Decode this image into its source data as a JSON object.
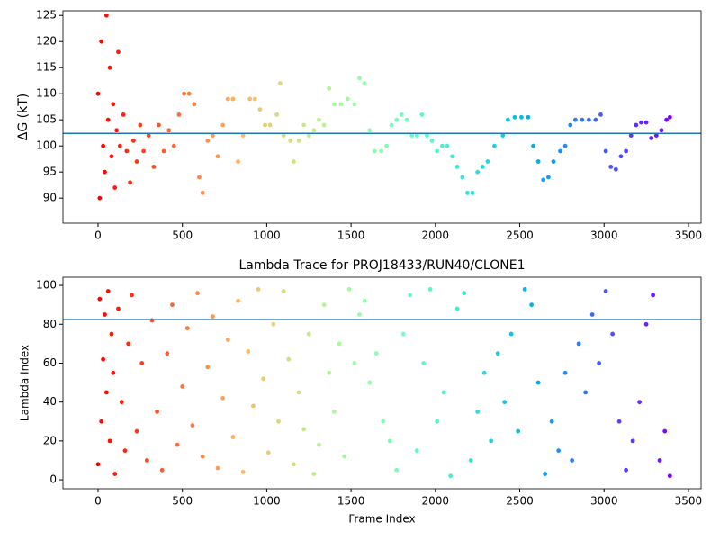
{
  "chart_data": [
    {
      "type": "scatter",
      "y_label": "ΔG (kT)",
      "colormap": "rainbow_r",
      "x": [
        0,
        10,
        20,
        30,
        40,
        50,
        60,
        70,
        80,
        90,
        100,
        110,
        120,
        130,
        150,
        170,
        190,
        210,
        230,
        250,
        270,
        300,
        330,
        360,
        390,
        420,
        450,
        480,
        510,
        540,
        570,
        600,
        620,
        650,
        680,
        710,
        740,
        770,
        800,
        830,
        860,
        900,
        930,
        960,
        990,
        1020,
        1060,
        1080,
        1100,
        1140,
        1160,
        1190,
        1220,
        1250,
        1280,
        1310,
        1340,
        1370,
        1400,
        1440,
        1480,
        1520,
        1550,
        1580,
        1610,
        1640,
        1680,
        1710,
        1740,
        1770,
        1800,
        1830,
        1860,
        1890,
        1920,
        1950,
        1980,
        2010,
        2040,
        2070,
        2100,
        2130,
        2160,
        2190,
        2220,
        2250,
        2280,
        2310,
        2350,
        2400,
        2430,
        2470,
        2510,
        2550,
        2580,
        2610,
        2640,
        2670,
        2700,
        2740,
        2770,
        2800,
        2830,
        2870,
        2910,
        2950,
        2980,
        3010,
        3040,
        3070,
        3100,
        3130,
        3160,
        3190,
        3220,
        3250,
        3280,
        3310,
        3340,
        3370,
        3390
      ],
      "values": [
        110,
        90,
        120,
        100,
        95,
        125,
        105,
        115,
        98,
        108,
        92,
        103,
        118,
        100,
        106,
        99,
        93,
        101,
        97,
        104,
        99,
        102,
        96,
        104,
        99,
        103,
        100,
        106,
        110,
        110,
        108,
        94,
        91,
        101,
        102,
        98,
        104,
        109,
        109,
        97,
        102,
        109,
        109,
        107,
        104,
        104,
        106,
        112,
        102,
        101,
        97,
        101,
        104,
        102,
        103,
        105,
        104,
        111,
        108,
        108,
        109,
        108,
        113,
        112,
        103,
        99,
        99,
        100,
        104,
        105,
        106,
        105,
        102,
        102,
        106,
        102,
        101,
        99,
        100,
        100,
        98,
        96,
        94,
        91,
        91,
        95,
        96,
        97,
        100,
        102,
        105,
        105.5,
        105.5,
        105.5,
        100,
        97,
        93.5,
        94,
        97,
        99,
        100,
        104,
        105,
        105,
        105,
        105,
        106,
        99,
        96,
        95.5,
        98,
        99,
        102,
        104,
        104.5,
        104.5,
        101.5,
        102,
        103,
        105,
        105.5
      ],
      "xlim": [
        -208,
        3575
      ],
      "xticks": [
        0,
        500,
        1000,
        1500,
        2000,
        2500,
        3000,
        3500
      ],
      "ylim": [
        85.2,
        125.9
      ],
      "yticks": [
        90,
        95,
        100,
        105,
        110,
        115,
        120,
        125
      ],
      "hline": 102.4,
      "hline_color": "#1f77b4"
    },
    {
      "type": "scatter",
      "title": "Lambda Trace for PROJ18433/RUN40/CLONE1",
      "x_label": "Frame Index",
      "y_label": "Lambda Index",
      "colormap": "rainbow_r",
      "x": [
        0,
        10,
        20,
        30,
        40,
        50,
        60,
        70,
        80,
        90,
        100,
        120,
        140,
        160,
        180,
        200,
        230,
        260,
        290,
        320,
        350,
        380,
        410,
        440,
        470,
        500,
        530,
        560,
        590,
        620,
        650,
        680,
        710,
        740,
        770,
        800,
        830,
        860,
        890,
        920,
        950,
        980,
        1010,
        1040,
        1070,
        1100,
        1130,
        1160,
        1190,
        1220,
        1250,
        1280,
        1310,
        1340,
        1370,
        1400,
        1430,
        1460,
        1490,
        1520,
        1550,
        1580,
        1610,
        1650,
        1690,
        1730,
        1770,
        1810,
        1850,
        1890,
        1930,
        1970,
        2010,
        2050,
        2090,
        2130,
        2170,
        2210,
        2250,
        2290,
        2330,
        2370,
        2410,
        2450,
        2490,
        2530,
        2570,
        2610,
        2650,
        2690,
        2730,
        2770,
        2810,
        2850,
        2890,
        2930,
        2970,
        3010,
        3050,
        3090,
        3130,
        3170,
        3210,
        3250,
        3290,
        3330,
        3360,
        3390
      ],
      "values": [
        8,
        93,
        30,
        62,
        85,
        45,
        97,
        20,
        75,
        55,
        3,
        88,
        40,
        15,
        70,
        95,
        25,
        60,
        10,
        82,
        35,
        5,
        65,
        90,
        18,
        48,
        78,
        28,
        96,
        12,
        58,
        84,
        6,
        42,
        72,
        22,
        92,
        4,
        66,
        38,
        98,
        52,
        14,
        80,
        30,
        97,
        62,
        8,
        45,
        26,
        75,
        3,
        18,
        90,
        55,
        35,
        70,
        12,
        98,
        60,
        85,
        92,
        50,
        65,
        30,
        20,
        5,
        75,
        95,
        15,
        60,
        98,
        30,
        45,
        2,
        88,
        96,
        10,
        35,
        55,
        20,
        65,
        40,
        75,
        25,
        98,
        90,
        50,
        3,
        30,
        15,
        55,
        10,
        70,
        45,
        85,
        60,
        97,
        75,
        30,
        5,
        20,
        40,
        80,
        95,
        10,
        25,
        2
      ],
      "xlim": [
        -208,
        3575
      ],
      "xticks": [
        0,
        500,
        1000,
        1500,
        2000,
        2500,
        3000,
        3500
      ],
      "ylim": [
        -4.6,
        104.2
      ],
      "yticks": [
        0,
        20,
        40,
        60,
        80,
        100
      ],
      "hline": 82.4,
      "hline_color": "#1f77b4"
    }
  ]
}
